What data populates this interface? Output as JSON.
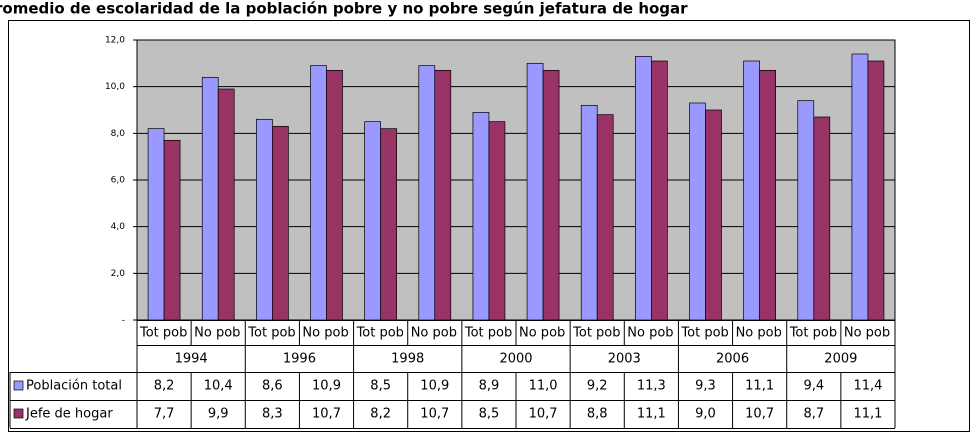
{
  "chart_data": {
    "type": "bar",
    "title": "romedio de escolaridad de la población pobre y no pobre según jefatura de hogar",
    "categories": [
      "Tot pob",
      "No pob",
      "Tot pob",
      "No pob",
      "Tot pob",
      "No pob",
      "Tot pob",
      "No pob",
      "Tot pob",
      "No pob",
      "Tot pob",
      "No pob",
      "Tot pob",
      "No pob"
    ],
    "groups": [
      "1994",
      "1996",
      "1998",
      "2000",
      "2003",
      "2006",
      "2009"
    ],
    "series": [
      {
        "name": "Población total",
        "color": "#9999ff",
        "values": [
          8.2,
          10.4,
          8.6,
          10.9,
          8.5,
          10.9,
          8.9,
          11.0,
          9.2,
          11.3,
          9.3,
          11.1,
          9.4,
          11.4
        ],
        "value_labels": [
          "8,2",
          "10,4",
          "8,6",
          "10,9",
          "8,5",
          "10,9",
          "8,9",
          "11,0",
          "9,2",
          "11,3",
          "9,3",
          "11,1",
          "9,4",
          "11,4"
        ]
      },
      {
        "name": "Jefe de hogar",
        "color": "#993366",
        "values": [
          7.7,
          9.9,
          8.3,
          10.7,
          8.2,
          10.7,
          8.5,
          10.7,
          8.8,
          11.1,
          9.0,
          10.7,
          8.7,
          11.1
        ],
        "value_labels": [
          "7,7",
          "9,9",
          "8,3",
          "10,7",
          "8,2",
          "10,7",
          "8,5",
          "10,7",
          "8,8",
          "11,1",
          "9,0",
          "10,7",
          "8,7",
          "11,1"
        ]
      }
    ],
    "ylim": [
      0,
      12
    ],
    "yticks": [
      {
        "value": 0,
        "label": "-"
      },
      {
        "value": 2,
        "label": "2,0"
      },
      {
        "value": 4,
        "label": "4,0"
      },
      {
        "value": 6,
        "label": "6,0"
      },
      {
        "value": 8,
        "label": "8,0"
      },
      {
        "value": 10,
        "label": "10,0"
      },
      {
        "value": 12,
        "label": "12,0"
      }
    ],
    "grid": true,
    "plot_background": "#c0c0c0"
  }
}
